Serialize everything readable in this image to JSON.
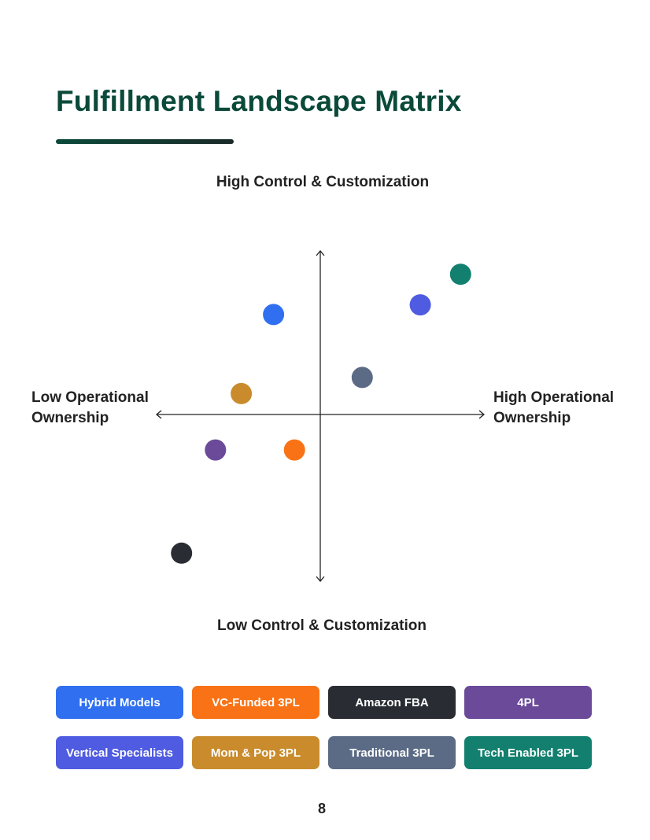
{
  "page": {
    "title": "Fulfillment Landscape Matrix",
    "page_number": "8"
  },
  "colors": {
    "title": "#0b4a3a",
    "title_rule_start": "#0b4a3a",
    "title_rule_end": "#1b2a28",
    "axis": "#222222"
  },
  "chart_data": {
    "type": "scatter",
    "title": "",
    "xlabel_low": "Low Operational Ownership",
    "xlabel_high": "High Operational Ownership",
    "ylabel_high": "High Control & Customization",
    "ylabel_low": "Low Control & Customization",
    "xlim": [
      -10,
      10
    ],
    "ylim": [
      -10,
      10
    ],
    "grid": false,
    "axes": "crossed-quadrant",
    "series": [
      {
        "name": "Hybrid Models",
        "color": "#3070f0",
        "x": -2.9,
        "y": 6.2
      },
      {
        "name": "VC-Funded 3PL",
        "color": "#f97316",
        "x": -1.6,
        "y": -2.2
      },
      {
        "name": "Amazon FBA",
        "color": "#292d33",
        "x": -8.6,
        "y": -8.6
      },
      {
        "name": "4PL",
        "color": "#6b4a9a",
        "x": -6.5,
        "y": -2.2
      },
      {
        "name": "Vertical Specialists",
        "color": "#4f5be0",
        "x": 6.2,
        "y": 6.8
      },
      {
        "name": "Mom & Pop 3PL",
        "color": "#c98b2c",
        "x": -4.9,
        "y": 1.3
      },
      {
        "name": "Traditional 3PL",
        "color": "#5b6b85",
        "x": 2.6,
        "y": 2.3
      },
      {
        "name": "Tech Enabled 3PL",
        "color": "#13806f",
        "x": 8.7,
        "y": 8.7
      }
    ]
  }
}
